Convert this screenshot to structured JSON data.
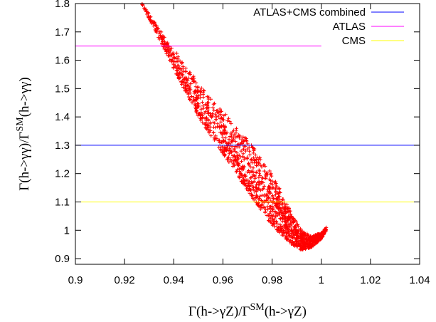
{
  "chart_data": {
    "type": "scatter",
    "title": "",
    "xlabel": "Γ(h->γZ)/Γ^SM(h->γZ)",
    "ylabel": "Γ(h->γγ)/Γ^SM(h->γγ)",
    "xlim": [
      0.9,
      1.04
    ],
    "ylim": [
      0.88,
      1.8
    ],
    "x_ticks": [
      "0.9",
      "0.92",
      "0.94",
      "0.96",
      "0.98",
      "1",
      "1.02",
      "1.04"
    ],
    "y_ticks": [
      "0.9",
      "1",
      "1.1",
      "1.2",
      "1.3",
      "1.4",
      "1.5",
      "1.6",
      "1.7",
      "1.8"
    ],
    "grid": false,
    "legend_position": "top-right",
    "series": [
      {
        "name": "",
        "marker": "+",
        "color": "#ff0000",
        "band_lower_edge": {
          "x": [
            0.927,
            0.94,
            0.95,
            0.96,
            0.97,
            0.978,
            0.983,
            0.988,
            0.992,
            0.996,
            1.0,
            1.002
          ],
          "y": [
            1.8,
            1.57,
            1.4,
            1.27,
            1.14,
            1.04,
            0.99,
            0.95,
            0.93,
            0.94,
            0.97,
            1.0
          ]
        },
        "band_upper_edge": {
          "x": [
            0.927,
            0.94,
            0.95,
            0.96,
            0.97,
            0.978,
            0.983,
            0.988,
            0.992,
            0.996,
            1.0,
            1.002
          ],
          "y": [
            1.8,
            1.64,
            1.52,
            1.42,
            1.32,
            1.23,
            1.15,
            1.06,
            1.0,
            0.98,
            0.99,
            1.01
          ]
        }
      }
    ],
    "reference_lines": [
      {
        "name": "ATLAS+CMS combined",
        "y": 1.3,
        "x_range": [
          0.9,
          1.04
        ],
        "color": "#0000ff"
      },
      {
        "name": "ATLAS",
        "y": 1.65,
        "x_range": [
          0.9,
          1.0
        ],
        "color": "#ff00ff"
      },
      {
        "name": "CMS",
        "y": 1.1,
        "x_range": [
          0.9,
          1.04
        ],
        "color": "#ffff00"
      }
    ]
  }
}
